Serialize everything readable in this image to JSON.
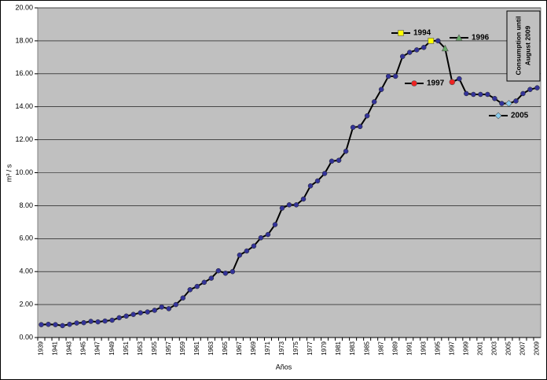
{
  "chart_data": {
    "type": "line",
    "y_label": "m³ / s",
    "x_label": "Años",
    "categories": [
      "1939",
      null,
      "1941",
      null,
      "1943",
      null,
      "1945",
      null,
      "1947",
      null,
      "1949",
      null,
      "1951",
      null,
      "1953",
      null,
      "1955",
      null,
      "1957",
      null,
      "1959",
      null,
      "1961",
      null,
      "1963",
      null,
      "1965",
      null,
      "1967",
      null,
      "1969",
      null,
      "1971",
      null,
      "1973",
      null,
      "1975",
      null,
      "1977",
      null,
      "1979",
      null,
      "1981",
      null,
      "1983",
      null,
      "1985",
      null,
      "1987",
      null,
      "1989",
      null,
      "1991",
      null,
      "1993",
      null,
      "1995",
      null,
      "1997",
      null,
      "1999",
      null,
      "2001",
      null,
      "2003",
      null,
      "2005",
      null,
      "2007",
      null,
      "2009"
    ],
    "series": [
      {
        "name": "Consumption",
        "color": "#000000",
        "marker_color": "#333399",
        "values": [
          0.78,
          0.8,
          0.78,
          0.72,
          0.8,
          0.88,
          0.9,
          0.98,
          0.95,
          1.0,
          1.05,
          1.2,
          1.3,
          1.4,
          1.5,
          1.55,
          1.65,
          1.85,
          1.75,
          2.0,
          2.4,
          2.9,
          3.1,
          3.35,
          3.6,
          4.05,
          3.9,
          4.0,
          5.0,
          5.25,
          5.55,
          6.05,
          6.25,
          6.85,
          7.85,
          8.05,
          8.05,
          8.4,
          9.2,
          9.5,
          9.95,
          10.7,
          10.75,
          11.3,
          12.75,
          12.8,
          13.45,
          14.3,
          15.05,
          15.85,
          15.85,
          17.05,
          17.3,
          17.45,
          17.6,
          18.0,
          18.0,
          17.55,
          15.5,
          15.7,
          14.8,
          14.75,
          14.75,
          14.75,
          14.5,
          14.2,
          14.2,
          14.35,
          14.8,
          15.05,
          15.15
        ]
      }
    ],
    "ylim": [
      0,
      20
    ],
    "yticks": [
      {
        "value": 0,
        "label": "0.00"
      },
      {
        "value": 2,
        "label": "2.00"
      },
      {
        "value": 4,
        "label": "4.00"
      },
      {
        "value": 6,
        "label": "6.00"
      },
      {
        "value": 8,
        "label": "8.00"
      },
      {
        "value": 10,
        "label": "10.00"
      },
      {
        "value": 12,
        "label": "12.00"
      },
      {
        "value": 14,
        "label": "14.00"
      },
      {
        "value": 16,
        "label": "16.00"
      },
      {
        "value": 18,
        "label": "18.00"
      },
      {
        "value": 20,
        "label": "20.00"
      }
    ],
    "grid": true,
    "background": "#c0c0c0",
    "annotations": [
      {
        "label": "1994",
        "color": "#ffff00",
        "shape": "square"
      },
      {
        "label": "1996",
        "color": "#66aa66",
        "shape": "triangle"
      },
      {
        "label": "1997",
        "color": "#ee2222",
        "shape": "circle"
      },
      {
        "label": "2005",
        "color": "#88ccee",
        "shape": "diamond"
      }
    ],
    "text_box": [
      "Consumption until",
      "August 2009"
    ]
  }
}
